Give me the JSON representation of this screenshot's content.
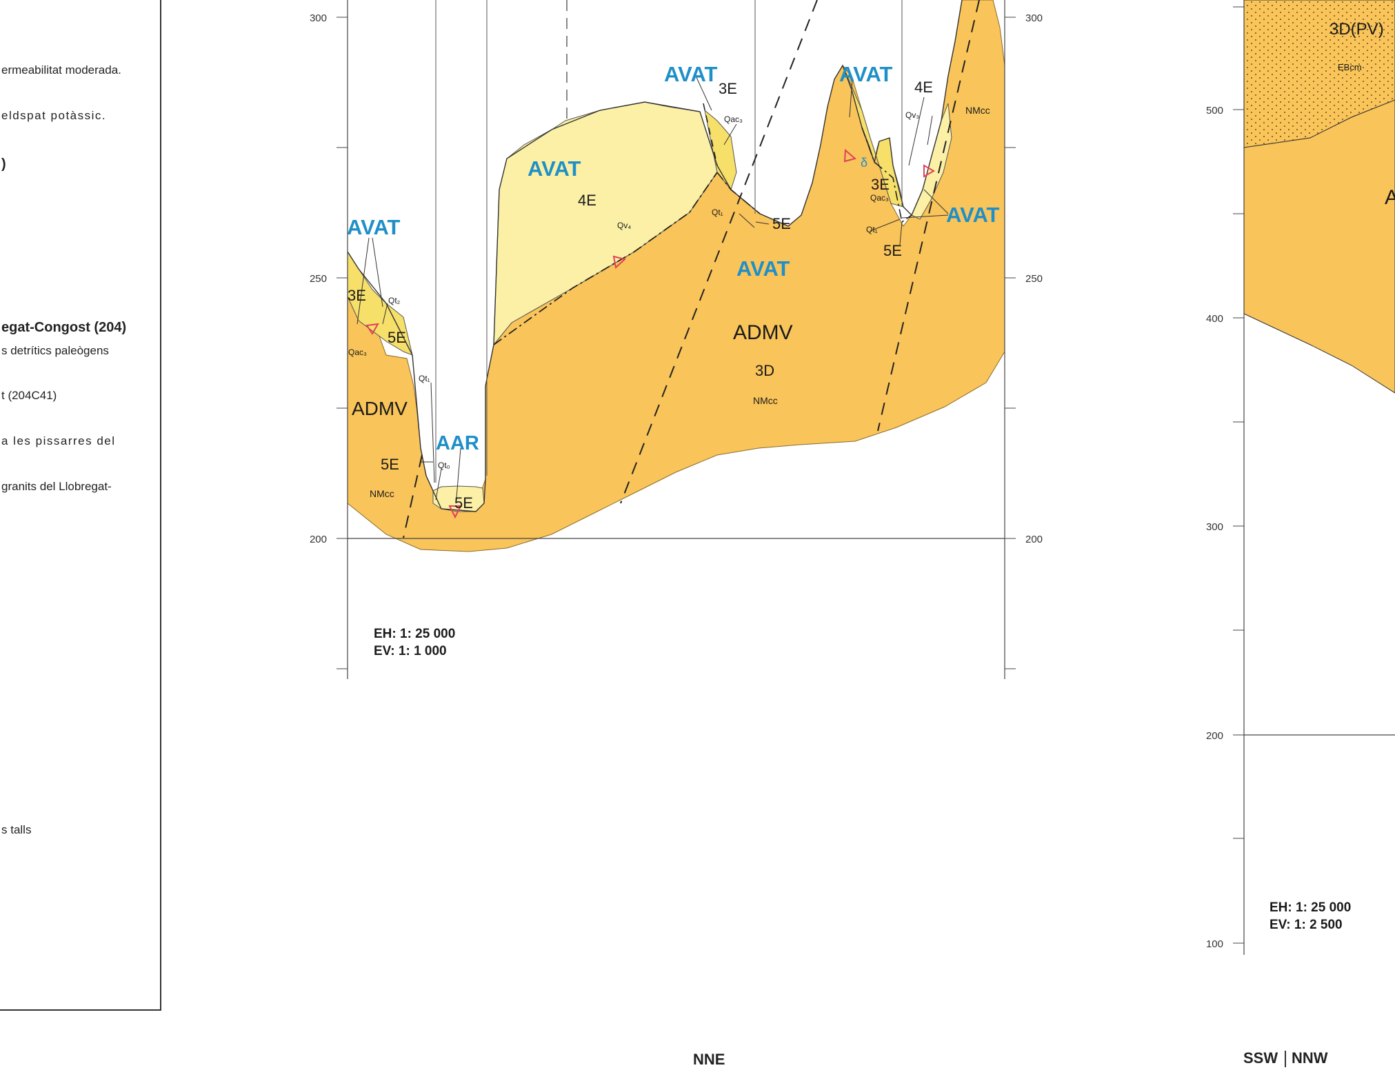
{
  "legend": {
    "lines": [
      {
        "text": "ermeabilitat moderada.",
        "bold": false
      },
      {
        "text": "eldspat potàssic.",
        "bold": false
      },
      {
        "text": ")",
        "bold": true
      },
      {
        "text": "egat-Congost (204)",
        "bold": true
      },
      {
        "text": "s detrítics paleògens",
        "bold": false
      },
      {
        "text": "t (204C41)",
        "bold": false
      },
      {
        "text": "a les pissarres del",
        "bold": false
      },
      {
        "text": "granits del Llobregat-",
        "bold": false
      },
      {
        "text": "s talls",
        "bold": false
      }
    ]
  },
  "section_nne": {
    "y_axis_ticks": [
      "300",
      "250",
      "200"
    ],
    "scale_h": "EH: 1: 25 000",
    "scale_v": "EV: 1: 1 000",
    "bottom_label": "NNE",
    "labels": {
      "avat": "AVAT",
      "aar": "AAR",
      "admv": "ADMV",
      "u3e": "3E",
      "u4e": "4E",
      "u5e": "5E",
      "u3d": "3D",
      "nmcc": "NMcc",
      "qt0": "Qt₀",
      "qt1": "Qt₁",
      "qt2": "Qt₂",
      "qac3": "Qac₃",
      "qv3": "Qv₃",
      "qv4": "Qv₄",
      "delta": "δ"
    }
  },
  "section_ssw": {
    "y_axis_ticks": [
      "500",
      "400",
      "300",
      "200",
      "100"
    ],
    "scale_h": "EH: 1: 25 000",
    "scale_v": "EV: 1: 2 500",
    "bottom_label_left": "SSW",
    "bottom_label_right": "NNW",
    "labels": {
      "u3dpv": "3D(PV)",
      "ebcm": "EBcm",
      "cut_a": "A"
    }
  },
  "colors": {
    "orange": "#F9C45A",
    "pale_yellow": "#FBF0A6",
    "yellow": "#F6E06A",
    "blue_label": "#1E8FC8",
    "triangle_red": "#E0405A",
    "axis": "#444444"
  }
}
